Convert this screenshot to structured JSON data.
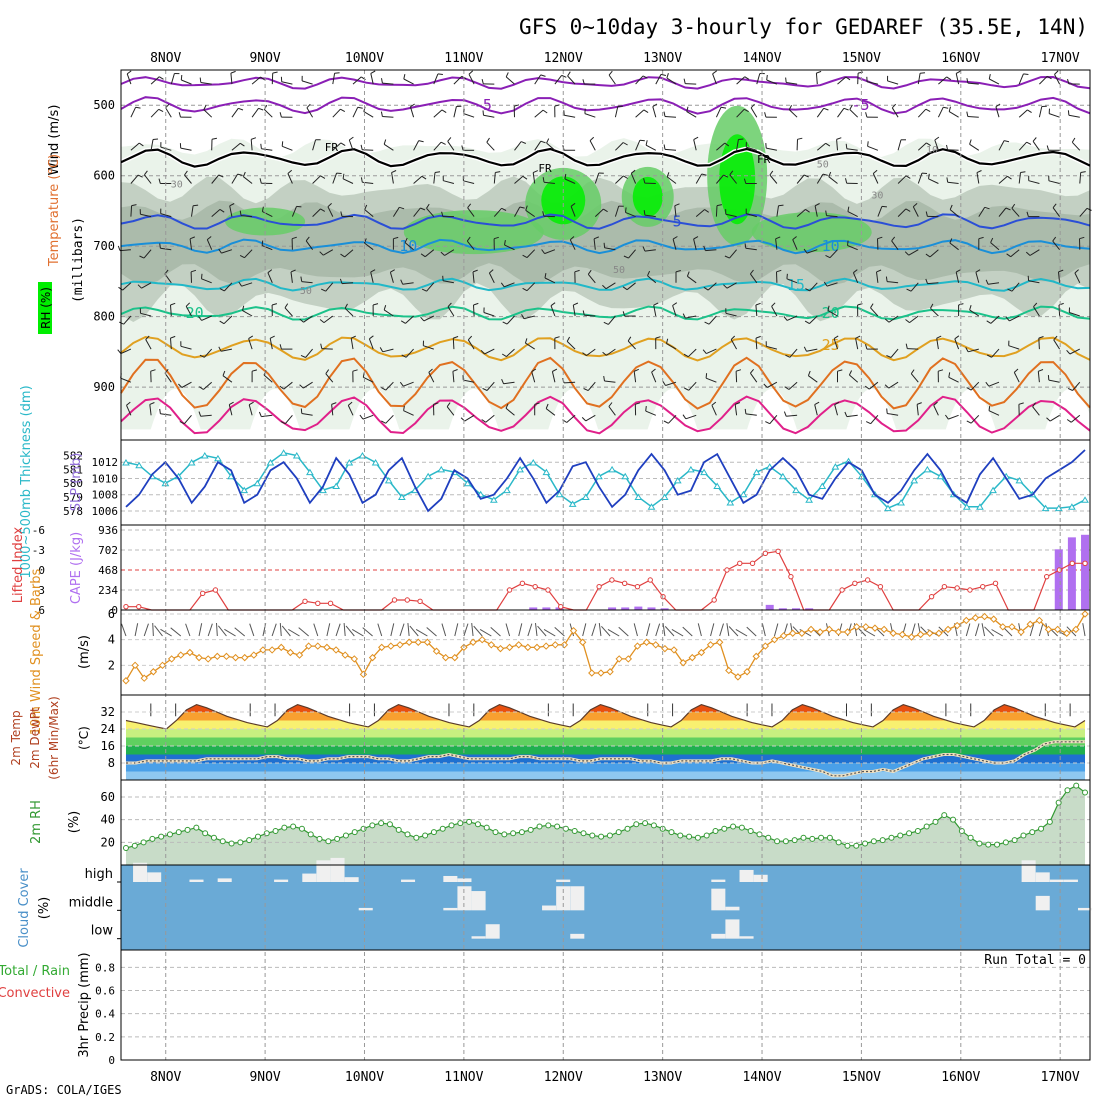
{
  "title": "GFS 0~10day 3-hourly for GEDAREF (35.5E, 14N)",
  "footer": "GrADS: COLA/IGES",
  "x_axis": {
    "dates": [
      "8NOV",
      "9NOV",
      "10NOV",
      "11NOV",
      "12NOV",
      "13NOV",
      "14NOV",
      "15NOV",
      "16NOV",
      "17NOV"
    ],
    "start_offset_days": -0.45,
    "end_offset_days": 9.3
  },
  "colors": {
    "freezing": "#000000",
    "temp_cold": "#8a1fb5",
    "temp_5": "#2b4fd6",
    "temp_10": "#1a8fd8",
    "temp_15": "#21b8c8",
    "temp_20": "#1bc28a",
    "temp_25": "#e0a020",
    "temp_30": "#e07020",
    "temp_35": "#e0208a",
    "rh_light": "#e8f2e8",
    "rh_mid": "#bfccbf",
    "rh_green": "#66cc66",
    "rh_bright": "#00ee00",
    "slp": "#1f3fbf",
    "thickness": "#2ab8c8",
    "cape": "#b070f0",
    "lifted": "#e04040",
    "wind": "#e09020",
    "cloud_bg": "#6aaad6",
    "rh2m": "#339933"
  },
  "chart_data": [
    {
      "type": "contour",
      "panel": "upper-air",
      "ylabel": "(millibars)",
      "ylabels_left": [
        "Wind (m/s)",
        "Temperature (°C)",
        "RH (%)"
      ],
      "y_ticks": [
        500,
        600,
        700,
        800,
        900
      ],
      "ylim": [
        450,
        975
      ],
      "freezing_label": "FR",
      "isotherms": [
        {
          "label": "-5",
          "mb": 500
        },
        {
          "label": "5",
          "mb": 665
        },
        {
          "label": "10",
          "mb": 700
        },
        {
          "label": "15",
          "mb": 755
        },
        {
          "label": "20",
          "mb": 795
        },
        {
          "label": "25",
          "mb": 835
        }
      ],
      "rh_labels": [
        "30",
        "50",
        "50",
        "10",
        "50",
        "30"
      ]
    },
    {
      "type": "line",
      "panel": "slp-thickness",
      "ylabel_left": "1000~500mb Thickness (dm)",
      "ylabel_right": "SLP (mb)",
      "left_ticks": [
        "582",
        "581",
        "580",
        "579",
        "578"
      ],
      "right_ticks": [
        "1012",
        "1010",
        "1008",
        "1006"
      ],
      "series": [
        {
          "name": "SLP (mb)",
          "values": [
            1006.5,
            1008,
            1010.5,
            1012,
            1010,
            1007,
            1009,
            1012,
            1011,
            1007,
            1008,
            1011,
            1012,
            1010,
            1007,
            1009,
            1012.5,
            1010.5,
            1007,
            1008,
            1011,
            1012.5,
            1009,
            1006,
            1007.5,
            1011,
            1010,
            1007.5,
            1008,
            1010,
            1012.5,
            1010,
            1007,
            1008.5,
            1011.5,
            1012,
            1009,
            1006.5,
            1008,
            1011,
            1013,
            1011,
            1008,
            1008.5,
            1012,
            1013,
            1010,
            1007,
            1008,
            1011,
            1012.5,
            1011,
            1008,
            1007.5,
            1010,
            1012,
            1011,
            1008,
            1007,
            1008.5,
            1011,
            1013,
            1011,
            1008,
            1007,
            1010.5,
            1012.5,
            1010,
            1007.5,
            1008,
            1010,
            1011,
            1012,
            1013.5
          ]
        },
        {
          "name": "1000~500mb Thickness (dm)",
          "values": [
            581.5,
            581.3,
            580.5,
            580,
            580.5,
            581.5,
            582,
            581.8,
            580.5,
            579.5,
            580,
            581.5,
            582.2,
            582,
            580.8,
            579.5,
            579.8,
            581.5,
            582,
            581.5,
            580.2,
            579,
            579.5,
            580.5,
            581,
            580.8,
            580,
            579.2,
            578.8,
            579.5,
            581,
            581.5,
            580.8,
            579.2,
            578.5,
            579,
            580.5,
            581,
            580.5,
            579,
            578.3,
            579,
            580.2,
            581,
            580.8,
            579.8,
            578.6,
            579.2,
            580.8,
            581.2,
            580.5,
            579.5,
            578.8,
            579.8,
            581.2,
            581.6,
            580.5,
            579.2,
            578.2,
            578.6,
            580.2,
            581,
            580.5,
            579.2,
            578.3,
            578.3,
            579.5,
            580.5,
            580.2,
            579.2,
            578.2,
            578.2,
            578.3,
            578.8
          ]
        }
      ]
    },
    {
      "type": "bar",
      "panel": "cape-lifted",
      "ylabel_left": "Lifted Index",
      "ylabel_right": "CAPE (J/kg)",
      "left_ticks": [
        "-6",
        "-3",
        "0",
        "3",
        "6"
      ],
      "right_ticks": [
        "936",
        "702",
        "468",
        "234",
        "0"
      ],
      "series": [
        {
          "name": "CAPE (J/kg)",
          "values": [
            0,
            0,
            0,
            0,
            0,
            0,
            0,
            0,
            0,
            0,
            0,
            0,
            0,
            0,
            0,
            0,
            0,
            0,
            0,
            0,
            0,
            0,
            0,
            0,
            0,
            0,
            0,
            0,
            0,
            0,
            0,
            30,
            30,
            30,
            0,
            0,
            0,
            30,
            30,
            40,
            30,
            20,
            0,
            0,
            0,
            0,
            0,
            0,
            0,
            60,
            20,
            20,
            20,
            0,
            0,
            0,
            0,
            0,
            0,
            0,
            0,
            0,
            0,
            0,
            0,
            0,
            0,
            0,
            0,
            0,
            0,
            710,
            850,
            880
          ]
        },
        {
          "name": "Lifted Index",
          "values": [
            5.5,
            5.5,
            6,
            6,
            6,
            6,
            3.5,
            3,
            6,
            6,
            6,
            6,
            6,
            6,
            4.7,
            5,
            5,
            6,
            6,
            6,
            6,
            4.5,
            4.5,
            4.7,
            6,
            6,
            6,
            6,
            6,
            6,
            3,
            2,
            2.5,
            3,
            5.5,
            6,
            6,
            2.5,
            1.5,
            2,
            2.5,
            1.5,
            4,
            6,
            6,
            6,
            4.5,
            0,
            -1,
            -1,
            -2.5,
            -2.8,
            1,
            6,
            6,
            6,
            3,
            2,
            1.5,
            2.5,
            6,
            6,
            6,
            4,
            2.5,
            2.7,
            3,
            2.5,
            2,
            6,
            6,
            6,
            1,
            0,
            -1,
            -1
          ]
        }
      ]
    },
    {
      "type": "line",
      "panel": "wind10m",
      "ylabel_left": "10m Wind Speed & Barbs",
      "ylabel_right": "(m/s)",
      "y_ticks": [
        "6",
        "4",
        "2"
      ],
      "ylim": [
        0,
        6
      ],
      "series": [
        {
          "name": "10m Wind Speed",
          "values": [
            0.8,
            2,
            1,
            1.5,
            2,
            2.5,
            2.8,
            3,
            2.6,
            2.5,
            2.7,
            2.7,
            2.6,
            2.6,
            2.8,
            3.2,
            3.2,
            3.4,
            3,
            2.8,
            3.5,
            3.5,
            3.4,
            3.2,
            2.8,
            2.5,
            1.3,
            2.6,
            3.4,
            3.5,
            3.6,
            3.8,
            3.8,
            3.8,
            3.1,
            2.6,
            2.6,
            3.4,
            3.8,
            4,
            3.6,
            3.3,
            3.4,
            3.6,
            3.4,
            3.4,
            3.5,
            3.6,
            3.6,
            4.7,
            3.8,
            1.4,
            1.4,
            1.5,
            2.5,
            2.5,
            3.5,
            3.8,
            3.6,
            3.3,
            3.2,
            2.2,
            2.6,
            3,
            3.6,
            3.8,
            1.6,
            1.1,
            1.5,
            2.7,
            3.5,
            4,
            4.3,
            4.5,
            4.5,
            4.8,
            4.6,
            4.8,
            4.6,
            4.6,
            5,
            5,
            4.9,
            4.8,
            4.5,
            4.4,
            4.2,
            4.4,
            4.5,
            4.5,
            4.8,
            5.1,
            5.5,
            5.7,
            5.8,
            5.6,
            5,
            5,
            4.6,
            5.2,
            5.5,
            4.8,
            4.8,
            4.5,
            4.8,
            6
          ]
        }
      ]
    },
    {
      "type": "area",
      "panel": "temp2m",
      "ylabel_left": [
        "2m Temp",
        "2m DewPt",
        "(6hr Min/Max)"
      ],
      "ylabel_right": "(°C)",
      "y_ticks": [
        "32",
        "24",
        "16",
        "8"
      ],
      "ylim": [
        0,
        40
      ],
      "series": [
        {
          "name": "2m Temp",
          "values": [
            28,
            27,
            26,
            25,
            24,
            28,
            33,
            35.5,
            34,
            32,
            30,
            28.5,
            27,
            26,
            25,
            28,
            33,
            35.5,
            34,
            32,
            30,
            28.5,
            27,
            26,
            25,
            28,
            33,
            35.5,
            34,
            32,
            30,
            28.5,
            27,
            26,
            25,
            28,
            33,
            35.5,
            34,
            32,
            30,
            28.5,
            27,
            26,
            25,
            28,
            33,
            35.5,
            34,
            32,
            30,
            28.5,
            27,
            26,
            25,
            28,
            33,
            35.5,
            34,
            32,
            30,
            28.5,
            27,
            26,
            25,
            28,
            33,
            35.5,
            34,
            32,
            30,
            28.5,
            27,
            26,
            25,
            28,
            33,
            35.5,
            34,
            32,
            30,
            28.5,
            27,
            26,
            25,
            28,
            33,
            35.5,
            34,
            32,
            30,
            28.5,
            27,
            26,
            25,
            28
          ]
        },
        {
          "name": "2m DewPt",
          "values": [
            8,
            8,
            9,
            9,
            9,
            9,
            9,
            9,
            10,
            10,
            10,
            10,
            10,
            10,
            11,
            11,
            10,
            10,
            9,
            9,
            10,
            10,
            11,
            11,
            11,
            10,
            10,
            9,
            9,
            10,
            11,
            11,
            12,
            11,
            10,
            10,
            10,
            10,
            10,
            11,
            11,
            10,
            10,
            10,
            10,
            9,
            9,
            10,
            10,
            10,
            10,
            9,
            9,
            8,
            8,
            9,
            9,
            9,
            9,
            10,
            10,
            9,
            8,
            8,
            9,
            8,
            7,
            6,
            5,
            4,
            2,
            2,
            3,
            4,
            4,
            5,
            4,
            6,
            8,
            10,
            11,
            12,
            12,
            11,
            10,
            9,
            8,
            8,
            9,
            12,
            14,
            17,
            18,
            18,
            18,
            18
          ]
        }
      ]
    },
    {
      "type": "area",
      "panel": "rh2m",
      "ylabel_left": "2m RH",
      "ylabel_right": "(%)",
      "y_ticks": [
        "60",
        "40",
        "20"
      ],
      "ylim": [
        0,
        75
      ],
      "series": [
        {
          "name": "2m RH",
          "values": [
            15,
            17,
            20,
            23,
            25,
            27,
            29,
            31,
            33,
            28,
            24,
            21,
            19,
            20,
            22,
            25,
            28,
            30,
            33,
            34,
            32,
            27,
            23,
            21,
            23,
            26,
            29,
            32,
            35,
            37,
            36,
            31,
            27,
            24,
            26,
            29,
            32,
            35,
            37,
            38,
            36,
            33,
            29,
            27,
            28,
            29,
            31,
            34,
            35,
            34,
            32,
            30,
            28,
            26,
            25,
            26,
            29,
            32,
            36,
            37,
            35,
            32,
            29,
            26,
            25,
            24,
            26,
            30,
            32,
            34,
            33,
            30,
            27,
            24,
            21,
            21,
            22,
            24,
            23,
            24,
            24,
            20,
            17,
            17,
            19,
            21,
            22,
            24,
            26,
            28,
            30,
            34,
            38,
            44,
            40,
            30,
            24,
            19,
            18,
            18,
            20,
            22,
            26,
            29,
            32,
            38,
            55,
            66,
            70,
            64
          ]
        }
      ]
    },
    {
      "type": "bar",
      "panel": "cloud-cover",
      "ylabel_left": "Cloud Cover",
      "ylabel_right": "(%)",
      "levels": [
        "high",
        "middle",
        "low"
      ],
      "series": [
        {
          "name": "high",
          "values": [
            0,
            80,
            40,
            0,
            0,
            10,
            0,
            15,
            0,
            0,
            0,
            10,
            0,
            35,
            90,
            100,
            20,
            0,
            0,
            0,
            10,
            0,
            0,
            25,
            15,
            0,
            0,
            0,
            0,
            0,
            0,
            10,
            0,
            0,
            0,
            0,
            0,
            0,
            0,
            0,
            0,
            0,
            10,
            0,
            50,
            30,
            0,
            0,
            0,
            0,
            0,
            0,
            0,
            0,
            0,
            0,
            0,
            0,
            0,
            0,
            0,
            0,
            0,
            0,
            90,
            40,
            10,
            10,
            0
          ]
        },
        {
          "name": "middle",
          "values": [
            0,
            0,
            0,
            0,
            0,
            0,
            0,
            0,
            0,
            0,
            0,
            0,
            0,
            0,
            0,
            0,
            0,
            10,
            0,
            0,
            0,
            0,
            0,
            10,
            100,
            80,
            0,
            0,
            0,
            0,
            20,
            100,
            100,
            0,
            0,
            0,
            0,
            0,
            0,
            0,
            0,
            0,
            90,
            15,
            0,
            0,
            0,
            0,
            0,
            0,
            0,
            0,
            0,
            0,
            0,
            0,
            0,
            0,
            0,
            0,
            0,
            0,
            0,
            0,
            0,
            60,
            0,
            0,
            10
          ]
        },
        {
          "name": "low",
          "values": [
            0,
            0,
            0,
            0,
            0,
            0,
            0,
            0,
            0,
            0,
            0,
            0,
            0,
            0,
            0,
            0,
            0,
            0,
            0,
            0,
            0,
            0,
            0,
            0,
            0,
            10,
            60,
            0,
            0,
            0,
            0,
            0,
            20,
            0,
            0,
            0,
            0,
            0,
            0,
            0,
            0,
            0,
            20,
            80,
            10,
            0,
            0,
            0,
            0,
            0,
            0,
            0,
            0,
            0,
            0,
            0,
            0,
            0,
            0,
            0,
            0,
            0,
            0,
            0,
            0,
            0,
            0,
            0,
            0
          ]
        }
      ]
    },
    {
      "type": "bar",
      "panel": "precip",
      "ylabel_left": "3hr Precip (mm)",
      "legend_total": "Total / Rain",
      "legend_conv": "Convective",
      "run_total": "Run Total = 0",
      "y_ticks": [
        "0.8",
        "0.6",
        "0.4",
        "0.2",
        "0"
      ],
      "ylim": [
        0,
        0.95
      ],
      "series": [
        {
          "name": "Total / Rain",
          "values": []
        },
        {
          "name": "Convective",
          "values": []
        }
      ]
    }
  ]
}
